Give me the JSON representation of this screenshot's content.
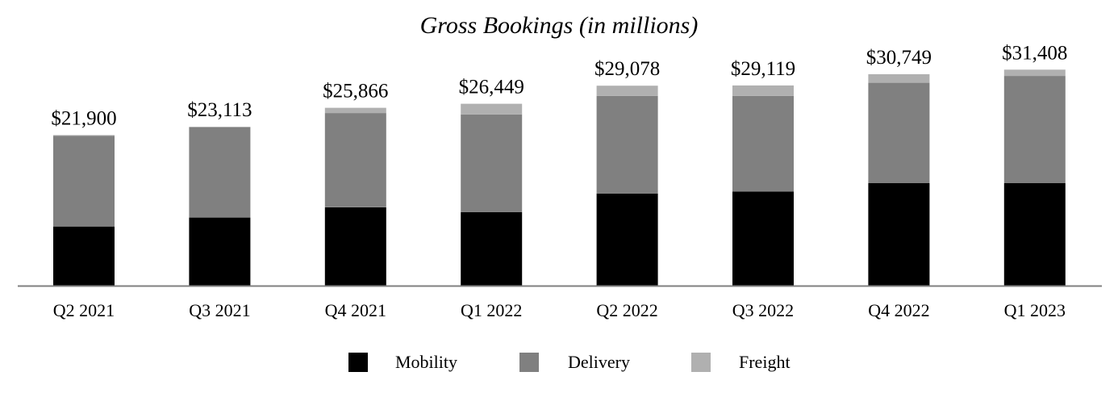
{
  "chart_data": {
    "type": "bar",
    "stacked": true,
    "title": "Gross Bookings (in millions)",
    "xlabel": "",
    "ylabel": "",
    "categories": [
      "Q2 2021",
      "Q3 2021",
      "Q4 2021",
      "Q1 2022",
      "Q2 2022",
      "Q3 2022",
      "Q4 2022",
      "Q1 2023"
    ],
    "totals_labels": [
      "$21,900",
      "$23,113",
      "$25,866",
      "$26,449",
      "$29,078",
      "$29,119",
      "$30,749",
      "$31,408"
    ],
    "series": [
      {
        "name": "Mobility",
        "color": "#000000",
        "values": [
          8600,
          9900,
          11400,
          10700,
          13400,
          13700,
          14900,
          14900
        ]
      },
      {
        "name": "Delivery",
        "color": "#808080",
        "values": [
          13200,
          13100,
          13700,
          14200,
          14200,
          13900,
          14600,
          15600
        ]
      },
      {
        "name": "Freight",
        "color": "#b0b0b0",
        "values": [
          100,
          113,
          766,
          1549,
          1478,
          1519,
          1249,
          908
        ]
      }
    ],
    "ylim": [
      0,
      34500
    ],
    "grid": false,
    "legend": "bottom-center"
  }
}
